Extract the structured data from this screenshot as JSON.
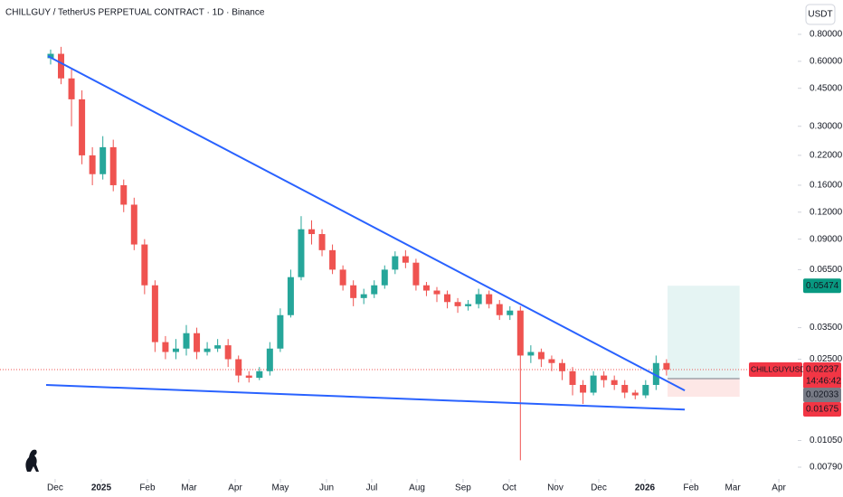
{
  "chart_data": {
    "type": "candlestick",
    "title": "CHILLGUY / TetherUS PERPETUAL CONTRACT · 1D · Binance",
    "currency": "USDT",
    "log_scale": true,
    "up_color": "#26a69a",
    "down_color": "#ef5350",
    "xlim": [
      -4.85,
      71.4
    ],
    "xticks": [
      {
        "value": 0.43,
        "label": "Dec"
      },
      {
        "value": 4.85,
        "label": "2025"
      },
      {
        "value": 9.27,
        "label": "Feb"
      },
      {
        "value": 13.26,
        "label": "Mar"
      },
      {
        "value": 17.68,
        "label": "Apr"
      },
      {
        "value": 22.01,
        "label": "May"
      },
      {
        "value": 26.43,
        "label": "Jun"
      },
      {
        "value": 30.76,
        "label": "Jul"
      },
      {
        "value": 35.1,
        "label": "Aug"
      },
      {
        "value": 39.51,
        "label": "Sep"
      },
      {
        "value": 43.93,
        "label": "Oct"
      },
      {
        "value": 48.35,
        "label": "Nov"
      },
      {
        "value": 52.51,
        "label": "Dec"
      },
      {
        "value": 56.93,
        "label": "2026"
      },
      {
        "value": 61.35,
        "label": "Feb"
      },
      {
        "value": 65.34,
        "label": "Mar"
      },
      {
        "value": 69.76,
        "label": "Apr"
      }
    ],
    "ylim": [
      0.00697,
      1.154
    ],
    "yticks": [
      {
        "value": 0.8,
        "label": "0.80000"
      },
      {
        "value": 0.6,
        "label": "0.60000"
      },
      {
        "value": 0.45,
        "label": "0.45000"
      },
      {
        "value": 0.3,
        "label": "0.30000"
      },
      {
        "value": 0.22,
        "label": "0.22000"
      },
      {
        "value": 0.16,
        "label": "0.16000"
      },
      {
        "value": 0.12,
        "label": "0.12000"
      },
      {
        "value": 0.09,
        "label": "0.09000"
      },
      {
        "value": 0.065,
        "label": "0.06500"
      },
      {
        "value": 0.035,
        "label": "0.03500"
      },
      {
        "value": 0.025,
        "label": "0.02500"
      },
      {
        "value": 0.0105,
        "label": "0.01050"
      },
      {
        "value": 0.0079,
        "label": "0.00790"
      }
    ],
    "open": [
      0.62,
      0.65,
      0.5,
      0.4,
      0.22,
      0.18,
      0.24,
      0.16,
      0.13,
      0.085,
      0.055,
      0.03,
      0.027,
      0.028,
      0.033,
      0.027,
      0.028,
      0.029,
      0.025,
      0.021,
      0.0205,
      0.022,
      0.028,
      0.04,
      0.06,
      0.1,
      0.095,
      0.08,
      0.065,
      0.055,
      0.048,
      0.05,
      0.055,
      0.065,
      0.075,
      0.07,
      0.055,
      0.052,
      0.05,
      0.046,
      0.044,
      0.045,
      0.05,
      0.045,
      0.04,
      0.042,
      0.026,
      0.027,
      0.025,
      0.024,
      0.022,
      0.019,
      0.0175,
      0.021,
      0.02,
      0.019,
      0.0175,
      0.017,
      0.019,
      0.024
    ],
    "high": [
      0.68,
      0.7,
      0.55,
      0.44,
      0.24,
      0.27,
      0.26,
      0.17,
      0.14,
      0.09,
      0.058,
      0.032,
      0.031,
      0.036,
      0.035,
      0.03,
      0.031,
      0.031,
      0.026,
      0.022,
      0.023,
      0.03,
      0.043,
      0.065,
      0.115,
      0.11,
      0.1,
      0.085,
      0.068,
      0.058,
      0.053,
      0.058,
      0.068,
      0.079,
      0.08,
      0.073,
      0.057,
      0.054,
      0.052,
      0.048,
      0.047,
      0.053,
      0.052,
      0.047,
      0.044,
      0.044,
      0.029,
      0.028,
      0.026,
      0.025,
      0.023,
      0.02,
      0.022,
      0.022,
      0.021,
      0.02,
      0.018,
      0.02,
      0.026,
      0.025
    ],
    "low": [
      0.58,
      0.47,
      0.3,
      0.2,
      0.16,
      0.17,
      0.15,
      0.12,
      0.08,
      0.05,
      0.027,
      0.025,
      0.025,
      0.026,
      0.025,
      0.026,
      0.027,
      0.023,
      0.0195,
      0.0195,
      0.02,
      0.021,
      0.027,
      0.039,
      0.058,
      0.085,
      0.075,
      0.062,
      0.052,
      0.044,
      0.045,
      0.048,
      0.053,
      0.062,
      0.066,
      0.052,
      0.049,
      0.046,
      0.043,
      0.041,
      0.042,
      0.043,
      0.043,
      0.038,
      0.038,
      0.0085,
      0.024,
      0.023,
      0.022,
      0.02,
      0.017,
      0.0155,
      0.017,
      0.0185,
      0.018,
      0.0165,
      0.0163,
      0.0165,
      0.018,
      0.021
    ],
    "close": [
      0.65,
      0.5,
      0.4,
      0.22,
      0.18,
      0.24,
      0.16,
      0.13,
      0.085,
      0.055,
      0.03,
      0.027,
      0.028,
      0.033,
      0.027,
      0.028,
      0.029,
      0.025,
      0.021,
      0.0205,
      0.022,
      0.028,
      0.04,
      0.06,
      0.1,
      0.095,
      0.08,
      0.065,
      0.055,
      0.048,
      0.05,
      0.055,
      0.065,
      0.075,
      0.07,
      0.055,
      0.052,
      0.05,
      0.046,
      0.044,
      0.045,
      0.05,
      0.045,
      0.04,
      0.042,
      0.026,
      0.027,
      0.025,
      0.024,
      0.022,
      0.019,
      0.0175,
      0.021,
      0.02,
      0.019,
      0.0175,
      0.017,
      0.019,
      0.024,
      0.02237
    ],
    "trendlines": [
      {
        "color": "#2962ff",
        "x": [
          -0.26,
          60.75
        ],
        "y": [
          0.634,
          0.0179
        ]
      },
      {
        "color": "#2962ff",
        "x": [
          -0.43,
          60.75
        ],
        "y": [
          0.019,
          0.0146
        ]
      }
    ],
    "position": {
      "x": [
        59.1,
        66.0
      ],
      "target": 0.05474,
      "entry": 0.02033,
      "stop": 0.01675
    },
    "symbol": "CHILLGUYUSDT.P",
    "last_price": 0.02237,
    "countdown": "14:46:42"
  }
}
